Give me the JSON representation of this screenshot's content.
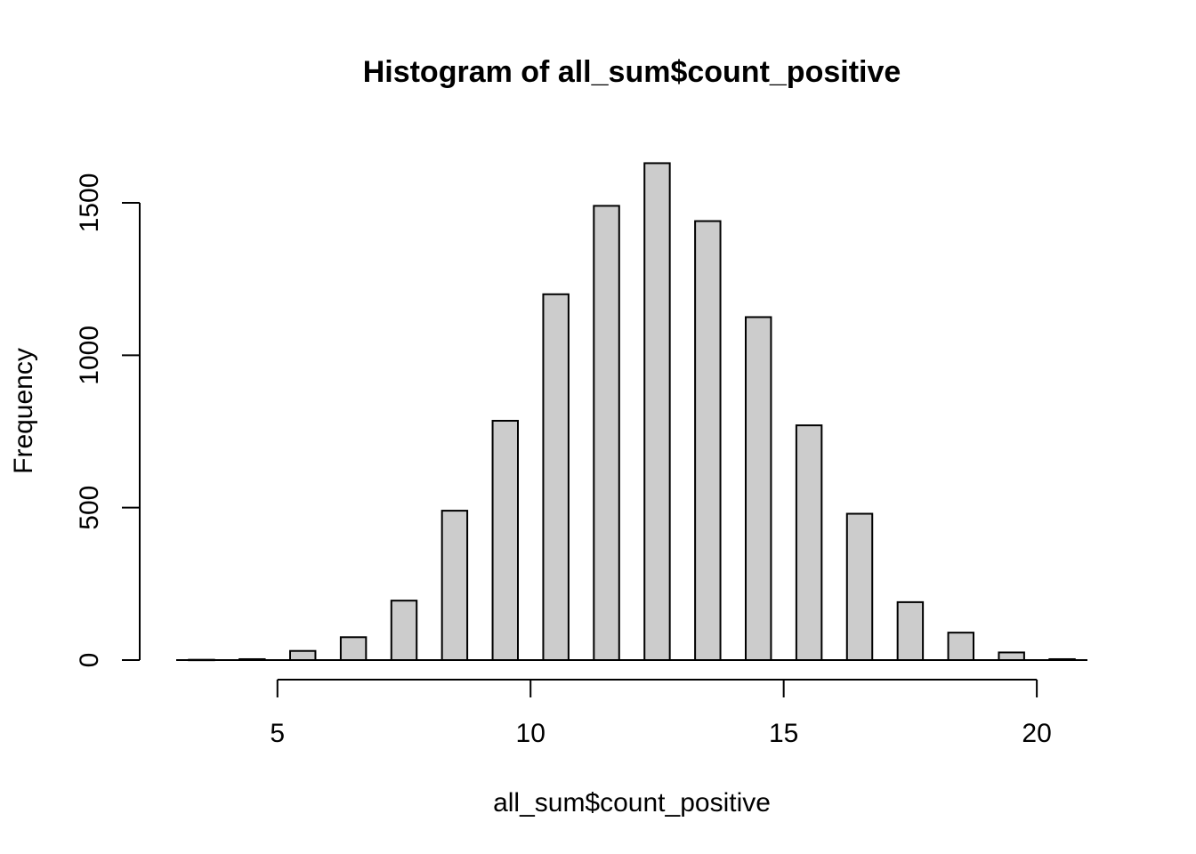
{
  "chart_data": {
    "type": "bar",
    "title": "Histogram of all_sum$count_positive",
    "xlabel": "all_sum$count_positive",
    "ylabel": "Frequency",
    "xlim": [
      3,
      21
    ],
    "ylim": [
      0,
      1640
    ],
    "x_ticks": [
      5,
      10,
      15,
      20
    ],
    "y_ticks": [
      0,
      500,
      1000,
      1500
    ],
    "bar_width": 0.5,
    "grid": false,
    "bar_color": "#cccccc",
    "edge_color": "#000000",
    "bins": [
      {
        "x": 3.5,
        "value": 1
      },
      {
        "x": 4.5,
        "value": 3
      },
      {
        "x": 5.5,
        "value": 30
      },
      {
        "x": 6.5,
        "value": 75
      },
      {
        "x": 7.5,
        "value": 195
      },
      {
        "x": 8.5,
        "value": 490
      },
      {
        "x": 9.5,
        "value": 785
      },
      {
        "x": 10.5,
        "value": 1200
      },
      {
        "x": 11.5,
        "value": 1490
      },
      {
        "x": 12.5,
        "value": 1630
      },
      {
        "x": 13.5,
        "value": 1440
      },
      {
        "x": 14.5,
        "value": 1125
      },
      {
        "x": 15.5,
        "value": 770
      },
      {
        "x": 16.5,
        "value": 480
      },
      {
        "x": 17.5,
        "value": 190
      },
      {
        "x": 18.5,
        "value": 90
      },
      {
        "x": 19.5,
        "value": 25
      },
      {
        "x": 20.5,
        "value": 3
      }
    ]
  }
}
